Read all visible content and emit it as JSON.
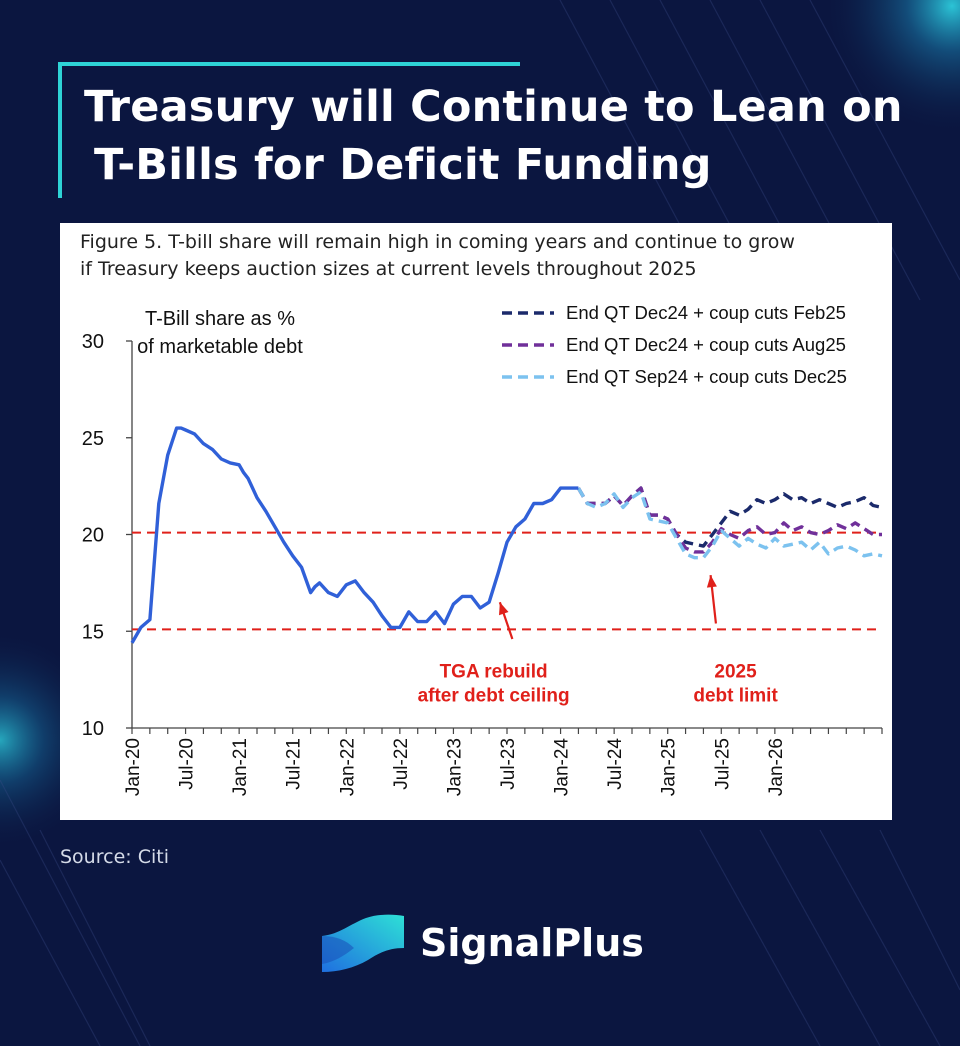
{
  "title": {
    "line1": "Treasury will Continue to Lean on",
    "line2": "T-Bills for Deficit Funding"
  },
  "figure_caption": {
    "line1": "Figure 5. T-bill share will remain high in coming years and continue to grow",
    "line2": "if Treasury keeps auction sizes at current levels throughout 2025"
  },
  "source": "Source: Citi",
  "brand": {
    "name": "SignalPlus",
    "logo_icon": "signalplus-logo-icon"
  },
  "colors": {
    "background": "#0b1640",
    "accent": "#2ed3d6",
    "actual": "#3060d8",
    "scenario_feb25": "#1b2a6b",
    "scenario_aug25": "#70309a",
    "scenario_dec25": "#7cc2ef",
    "reference": "#e0201a",
    "annotation": "#e0201a"
  },
  "chart_data": {
    "type": "line",
    "title": "",
    "ylabel": "T-Bill share as % of marketable debt",
    "ylabel_lines": [
      "T-Bill share as %",
      "of marketable debt"
    ],
    "xlabel": "",
    "ylim": [
      10,
      30
    ],
    "yticks": [
      10,
      15,
      20,
      25,
      30
    ],
    "x_start": "Jan-20",
    "months_total": 84,
    "xticks": [
      {
        "month": 0,
        "label": "Jan-20"
      },
      {
        "month": 6,
        "label": "Jul-20"
      },
      {
        "month": 12,
        "label": "Jan-21"
      },
      {
        "month": 18,
        "label": "Jul-21"
      },
      {
        "month": 24,
        "label": "Jan-22"
      },
      {
        "month": 30,
        "label": "Jul-22"
      },
      {
        "month": 36,
        "label": "Jan-23"
      },
      {
        "month": 42,
        "label": "Jul-23"
      },
      {
        "month": 48,
        "label": "Jan-24"
      },
      {
        "month": 54,
        "label": "Jul-24"
      },
      {
        "month": 60,
        "label": "Jan-25"
      },
      {
        "month": 66,
        "label": "Jul-25"
      },
      {
        "month": 72,
        "label": "Jan-26"
      }
    ],
    "legend_position": "top-right",
    "series": [
      {
        "name": "T-Bill share (actual)",
        "style": "solid",
        "color": "#3060d8",
        "in_legend": false,
        "x": [
          0,
          1,
          2,
          3,
          4,
          5,
          5.5,
          6,
          7,
          8,
          9,
          10,
          11,
          12,
          12.5,
          13,
          14,
          15,
          16,
          17,
          18,
          19,
          20,
          20.5,
          21,
          22,
          23,
          24,
          25,
          26,
          27,
          28,
          29,
          30,
          31,
          32,
          33,
          34,
          35,
          36,
          37,
          38,
          39,
          40,
          41,
          42,
          43,
          44,
          45,
          46,
          47,
          48,
          49,
          50
        ],
        "y": [
          14.4,
          15.2,
          15.6,
          21.6,
          24.1,
          25.5,
          25.5,
          25.4,
          25.2,
          24.7,
          24.4,
          23.9,
          23.7,
          23.6,
          23.2,
          22.9,
          21.9,
          21.2,
          20.4,
          19.6,
          18.9,
          18.3,
          17.0,
          17.3,
          17.5,
          17.0,
          16.8,
          17.4,
          17.6,
          17.0,
          16.5,
          15.8,
          15.2,
          15.2,
          16.0,
          15.5,
          15.5,
          16.0,
          15.4,
          16.4,
          16.8,
          16.8,
          16.2,
          16.5,
          18.0,
          19.6,
          20.4,
          20.8,
          21.6,
          21.6,
          21.8,
          22.4,
          22.4,
          22.4
        ]
      },
      {
        "name": "End QT Dec24 + coup cuts Feb25",
        "style": "dashed",
        "color": "#1b2a6b",
        "in_legend": true,
        "x": [
          50,
          51,
          52,
          53,
          54,
          55,
          56,
          57,
          58,
          59,
          60,
          61,
          62,
          63,
          64,
          65,
          66,
          67,
          68,
          69,
          70,
          71,
          72,
          73,
          74,
          75,
          76,
          77,
          78,
          79,
          80,
          81,
          82,
          83,
          84
        ],
        "y": [
          22.4,
          21.6,
          21.6,
          21.6,
          22.0,
          21.5,
          22.0,
          22.4,
          21.0,
          21.0,
          20.8,
          20.0,
          19.6,
          19.5,
          19.4,
          20.0,
          20.6,
          21.2,
          21.0,
          21.3,
          21.8,
          21.6,
          21.8,
          22.1,
          21.8,
          21.9,
          21.6,
          21.8,
          21.6,
          21.4,
          21.6,
          21.7,
          21.9,
          21.5,
          21.4
        ]
      },
      {
        "name": "End QT Dec24 + coup cuts Aug25",
        "style": "dashed",
        "color": "#70309a",
        "in_legend": true,
        "x": [
          50,
          51,
          52,
          53,
          54,
          55,
          56,
          57,
          58,
          59,
          60,
          61,
          62,
          63,
          64,
          65,
          66,
          67,
          68,
          69,
          70,
          71,
          72,
          73,
          74,
          75,
          76,
          77,
          78,
          79,
          80,
          81,
          82,
          83,
          84
        ],
        "y": [
          22.4,
          21.6,
          21.6,
          21.6,
          22.0,
          21.5,
          22.0,
          22.4,
          21.0,
          21.0,
          20.8,
          20.0,
          19.3,
          19.1,
          19.1,
          19.6,
          20.3,
          20.0,
          19.8,
          20.2,
          20.4,
          20.0,
          20.1,
          20.6,
          20.2,
          20.4,
          20.1,
          20.0,
          20.2,
          20.5,
          20.3,
          20.6,
          20.3,
          20.0,
          20.0
        ]
      },
      {
        "name": "End QT Sep24 + coup cuts Dec25",
        "style": "dashed",
        "color": "#7cc2ef",
        "in_legend": true,
        "x": [
          50,
          51,
          52,
          53,
          54,
          55,
          56,
          57,
          58,
          59,
          60,
          61,
          62,
          63,
          64,
          65,
          66,
          67,
          68,
          69,
          70,
          71,
          72,
          73,
          74,
          75,
          76,
          77,
          78,
          79,
          80,
          81,
          82,
          83,
          84
        ],
        "y": [
          22.4,
          21.6,
          21.4,
          21.6,
          22.1,
          21.4,
          21.9,
          22.2,
          20.8,
          20.7,
          20.6,
          19.8,
          19.0,
          18.8,
          18.8,
          19.4,
          20.2,
          19.8,
          19.4,
          19.8,
          19.5,
          19.3,
          19.8,
          19.4,
          19.5,
          19.6,
          19.2,
          19.6,
          19.0,
          19.3,
          19.4,
          19.2,
          18.9,
          19.0,
          18.9
        ]
      }
    ],
    "reference_lines": [
      {
        "y": 20.1,
        "color": "#e0201a",
        "style": "dashed"
      },
      {
        "y": 15.1,
        "color": "#e0201a",
        "style": "dashed"
      }
    ],
    "annotations": [
      {
        "lines": [
          "TGA rebuild",
          "after debt ceiling"
        ],
        "arrow_from": {
          "month": 42.6,
          "value": 14.6
        },
        "arrow_to": {
          "month": 41.2,
          "value": 16.5
        },
        "text_month": 40.5,
        "text_value": 12.6
      },
      {
        "lines": [
          "2025",
          "debt limit"
        ],
        "arrow_from": {
          "month": 65.4,
          "value": 15.4
        },
        "arrow_to": {
          "month": 64.8,
          "value": 17.9
        },
        "text_month": 67.6,
        "text_value": 12.6
      }
    ]
  }
}
